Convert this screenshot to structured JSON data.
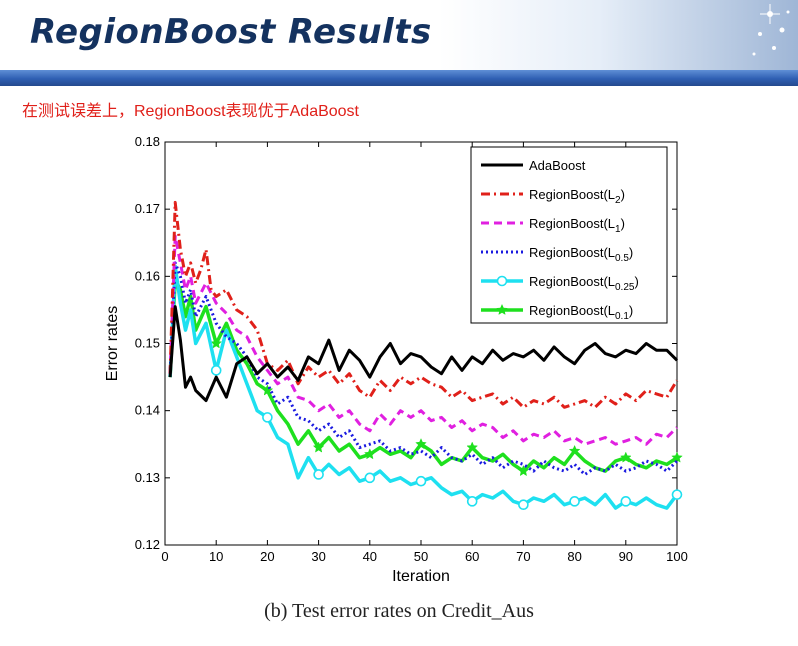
{
  "header": {
    "title": "RegionBoost Results",
    "subtitle": "在测试误差上，RegionBoost表现优于AdaBoost"
  },
  "caption": "(b) Test error rates on Credit_Aus",
  "chart_data": {
    "type": "line",
    "title": "",
    "xlabel": "Iteration",
    "ylabel": "Error rates",
    "xlim": [
      0,
      100
    ],
    "ylim": [
      0.12,
      0.18
    ],
    "xticks": [
      0,
      10,
      20,
      30,
      40,
      50,
      60,
      70,
      80,
      90,
      100
    ],
    "yticks": [
      0.12,
      0.13,
      0.14,
      0.15,
      0.16,
      0.17,
      0.18
    ],
    "grid": false,
    "legend_position": "top-right",
    "series": [
      {
        "name": "AdaBoost",
        "name_sub": "",
        "color": "#000000",
        "style": "solid",
        "marker": "none",
        "x": [
          1,
          2,
          3,
          4,
          5,
          6,
          8,
          10,
          12,
          14,
          16,
          18,
          20,
          22,
          24,
          26,
          28,
          30,
          32,
          34,
          36,
          38,
          40,
          42,
          44,
          46,
          48,
          50,
          52,
          54,
          56,
          58,
          60,
          62,
          64,
          66,
          68,
          70,
          72,
          74,
          76,
          78,
          80,
          82,
          84,
          86,
          88,
          90,
          92,
          94,
          96,
          98,
          100
        ],
        "y": [
          0.145,
          0.1555,
          0.1505,
          0.1435,
          0.145,
          0.143,
          0.1415,
          0.145,
          0.142,
          0.147,
          0.148,
          0.1455,
          0.147,
          0.145,
          0.1465,
          0.1445,
          0.148,
          0.147,
          0.1505,
          0.146,
          0.149,
          0.1475,
          0.145,
          0.148,
          0.15,
          0.147,
          0.1485,
          0.148,
          0.1465,
          0.1455,
          0.148,
          0.146,
          0.148,
          0.147,
          0.149,
          0.1475,
          0.1485,
          0.148,
          0.149,
          0.1475,
          0.1495,
          0.148,
          0.147,
          0.149,
          0.15,
          0.1485,
          0.148,
          0.149,
          0.1485,
          0.15,
          0.149,
          0.149,
          0.1475
        ]
      },
      {
        "name": "RegionBoost(L",
        "name_sub": "2",
        "color": "#e0201a",
        "style": "dashdot",
        "marker": "none",
        "x": [
          1,
          2,
          3,
          4,
          5,
          6,
          7,
          8,
          9,
          10,
          12,
          14,
          16,
          18,
          20,
          22,
          24,
          26,
          28,
          30,
          32,
          34,
          36,
          38,
          40,
          42,
          44,
          46,
          48,
          50,
          52,
          54,
          56,
          58,
          60,
          62,
          64,
          66,
          68,
          70,
          72,
          74,
          76,
          78,
          80,
          82,
          84,
          86,
          88,
          90,
          92,
          94,
          96,
          98,
          100
        ],
        "y": [
          0.1455,
          0.171,
          0.164,
          0.16,
          0.162,
          0.159,
          0.161,
          0.164,
          0.158,
          0.157,
          0.158,
          0.155,
          0.154,
          0.152,
          0.147,
          0.146,
          0.1475,
          0.144,
          0.1465,
          0.145,
          0.146,
          0.144,
          0.1455,
          0.143,
          0.142,
          0.1445,
          0.143,
          0.145,
          0.144,
          0.145,
          0.144,
          0.1435,
          0.142,
          0.143,
          0.1415,
          0.142,
          0.1425,
          0.141,
          0.142,
          0.1405,
          0.1415,
          0.141,
          0.142,
          0.1405,
          0.141,
          0.1415,
          0.1405,
          0.142,
          0.141,
          0.1425,
          0.1415,
          0.143,
          0.1425,
          0.142,
          0.1445
        ]
      },
      {
        "name": "RegionBoost(L",
        "name_sub": "1",
        "color": "#e020e0",
        "style": "dashed",
        "marker": "none",
        "x": [
          1,
          2,
          3,
          4,
          5,
          6,
          8,
          10,
          12,
          14,
          16,
          18,
          20,
          22,
          24,
          26,
          28,
          30,
          32,
          34,
          36,
          38,
          40,
          42,
          44,
          46,
          48,
          50,
          52,
          54,
          56,
          58,
          60,
          62,
          64,
          66,
          68,
          70,
          72,
          74,
          76,
          78,
          80,
          82,
          84,
          86,
          88,
          90,
          92,
          94,
          96,
          98,
          100
        ],
        "y": [
          0.1455,
          0.166,
          0.162,
          0.158,
          0.16,
          0.156,
          0.159,
          0.156,
          0.1545,
          0.152,
          0.151,
          0.148,
          0.146,
          0.144,
          0.145,
          0.142,
          0.1415,
          0.14,
          0.141,
          0.139,
          0.14,
          0.138,
          0.137,
          0.1395,
          0.138,
          0.14,
          0.139,
          0.14,
          0.1385,
          0.139,
          0.1375,
          0.1385,
          0.137,
          0.138,
          0.1375,
          0.136,
          0.137,
          0.1355,
          0.1365,
          0.136,
          0.137,
          0.1355,
          0.136,
          0.135,
          0.1355,
          0.136,
          0.135,
          0.1355,
          0.136,
          0.135,
          0.1365,
          0.136,
          0.1375
        ]
      },
      {
        "name": "RegionBoost(L",
        "name_sub": "0.5",
        "color": "#1a1ae0",
        "style": "dotted",
        "marker": "none",
        "x": [
          1,
          2,
          3,
          4,
          5,
          6,
          8,
          10,
          12,
          14,
          16,
          18,
          20,
          22,
          24,
          26,
          28,
          30,
          32,
          34,
          36,
          38,
          40,
          42,
          44,
          46,
          48,
          50,
          52,
          54,
          56,
          58,
          60,
          62,
          64,
          66,
          68,
          70,
          72,
          74,
          76,
          78,
          80,
          82,
          84,
          86,
          88,
          90,
          92,
          94,
          96,
          98,
          100
        ],
        "y": [
          0.1455,
          0.162,
          0.16,
          0.156,
          0.158,
          0.154,
          0.157,
          0.153,
          0.151,
          0.15,
          0.148,
          0.145,
          0.144,
          0.141,
          0.142,
          0.139,
          0.1385,
          0.137,
          0.138,
          0.136,
          0.137,
          0.1345,
          0.135,
          0.1355,
          0.134,
          0.1345,
          0.1335,
          0.134,
          0.133,
          0.1345,
          0.133,
          0.1325,
          0.1335,
          0.132,
          0.133,
          0.1315,
          0.1325,
          0.132,
          0.131,
          0.1325,
          0.1315,
          0.131,
          0.132,
          0.1305,
          0.1315,
          0.131,
          0.132,
          0.131,
          0.1315,
          0.1325,
          0.132,
          0.131,
          0.1325
        ]
      },
      {
        "name": "RegionBoost(L",
        "name_sub": "0.25",
        "color": "#1ee0f0",
        "style": "solid-thick",
        "marker": "circle",
        "x": [
          1,
          2,
          3,
          4,
          5,
          6,
          8,
          10,
          12,
          14,
          16,
          18,
          20,
          22,
          24,
          26,
          28,
          30,
          32,
          34,
          36,
          38,
          40,
          42,
          44,
          46,
          48,
          50,
          52,
          54,
          56,
          58,
          60,
          62,
          64,
          66,
          68,
          70,
          72,
          74,
          76,
          78,
          80,
          82,
          84,
          86,
          88,
          90,
          92,
          94,
          96,
          98,
          100
        ],
        "y": [
          0.145,
          0.1615,
          0.156,
          0.152,
          0.155,
          0.15,
          0.153,
          0.146,
          0.152,
          0.148,
          0.144,
          0.14,
          0.139,
          0.136,
          0.135,
          0.13,
          0.133,
          0.1305,
          0.132,
          0.1305,
          0.1315,
          0.1295,
          0.13,
          0.131,
          0.1295,
          0.13,
          0.129,
          0.1295,
          0.13,
          0.1285,
          0.1275,
          0.128,
          0.1265,
          0.1275,
          0.127,
          0.128,
          0.1265,
          0.126,
          0.127,
          0.1265,
          0.1275,
          0.126,
          0.1265,
          0.127,
          0.126,
          0.1275,
          0.1255,
          0.1265,
          0.126,
          0.127,
          0.126,
          0.1255,
          0.1275
        ]
      },
      {
        "name": "RegionBoost(L",
        "name_sub": "0.1",
        "color": "#1ee01e",
        "style": "solid-thick",
        "marker": "star",
        "x": [
          1,
          2,
          3,
          4,
          5,
          6,
          8,
          10,
          12,
          14,
          16,
          18,
          20,
          22,
          24,
          26,
          28,
          30,
          32,
          34,
          36,
          38,
          40,
          42,
          44,
          46,
          48,
          50,
          52,
          54,
          56,
          58,
          60,
          62,
          64,
          66,
          68,
          70,
          72,
          74,
          76,
          78,
          80,
          82,
          84,
          86,
          88,
          90,
          92,
          94,
          96,
          98,
          100
        ],
        "y": [
          0.145,
          0.1595,
          0.158,
          0.154,
          0.157,
          0.152,
          0.1555,
          0.15,
          0.153,
          0.149,
          0.147,
          0.144,
          0.143,
          0.14,
          0.138,
          0.135,
          0.137,
          0.1345,
          0.136,
          0.134,
          0.135,
          0.133,
          0.1335,
          0.1345,
          0.1335,
          0.134,
          0.133,
          0.135,
          0.134,
          0.132,
          0.133,
          0.1325,
          0.1345,
          0.133,
          0.1325,
          0.1335,
          0.132,
          0.131,
          0.1325,
          0.1315,
          0.133,
          0.132,
          0.134,
          0.1325,
          0.1315,
          0.131,
          0.1325,
          0.133,
          0.132,
          0.1315,
          0.1325,
          0.132,
          0.133
        ]
      }
    ]
  }
}
